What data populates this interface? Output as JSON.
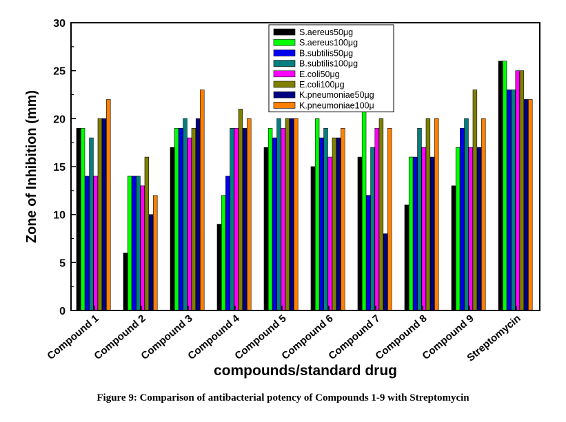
{
  "figure": {
    "caption": "Figure 9: Comparison of antibacterial potency of Compounds 1-9 with Streptomycin"
  },
  "chart_data": {
    "type": "bar",
    "title": "",
    "xlabel": "compounds/standard drug",
    "ylabel": "Zone of Inhibition (mm)",
    "ylim": [
      0,
      30
    ],
    "yticks": [
      "0",
      "5",
      "10",
      "15",
      "20",
      "25",
      "30"
    ],
    "grid": false,
    "legend_position": "top-center",
    "categories": [
      "Compound 1",
      "Compound 2",
      "Compound 3",
      "Compound 4",
      "Compound 5",
      "Compound 6",
      "Compound 7",
      "Compound 8",
      "Compound 9",
      "Streptomycin"
    ],
    "series": [
      {
        "name": "S.aereus50μg",
        "color": "#000000",
        "values": [
          19,
          6,
          17,
          9,
          17,
          15,
          16,
          11,
          13,
          26
        ]
      },
      {
        "name": "S.aereus100μg",
        "color": "#00ff00",
        "values": [
          19,
          14,
          19,
          12,
          19,
          20,
          21,
          16,
          17,
          26
        ]
      },
      {
        "name": "B.subtilis50μg",
        "color": "#0000ee",
        "values": [
          14,
          14,
          19,
          14,
          18,
          18,
          12,
          16,
          19,
          23
        ]
      },
      {
        "name": "B.subtilis100μg",
        "color": "#008080",
        "values": [
          18,
          14,
          20,
          19,
          20,
          19,
          17,
          19,
          20,
          23
        ]
      },
      {
        "name": "E.coli50μg",
        "color": "#ff00ff",
        "values": [
          14,
          13,
          18,
          19,
          19,
          16,
          19,
          17,
          17,
          25
        ]
      },
      {
        "name": "E.coli100μg",
        "color": "#808000",
        "values": [
          20,
          16,
          19,
          21,
          20,
          18,
          20,
          20,
          23,
          25
        ]
      },
      {
        "name": "K.pneumoniae50μg",
        "color": "#000080",
        "values": [
          20,
          10,
          20,
          19,
          20,
          18,
          8,
          16,
          17,
          22
        ]
      },
      {
        "name": "K.pneumoniae100μ",
        "color": "#ff8000",
        "values": [
          22,
          12,
          23,
          20,
          20,
          19,
          19,
          20,
          20,
          22
        ]
      }
    ]
  }
}
